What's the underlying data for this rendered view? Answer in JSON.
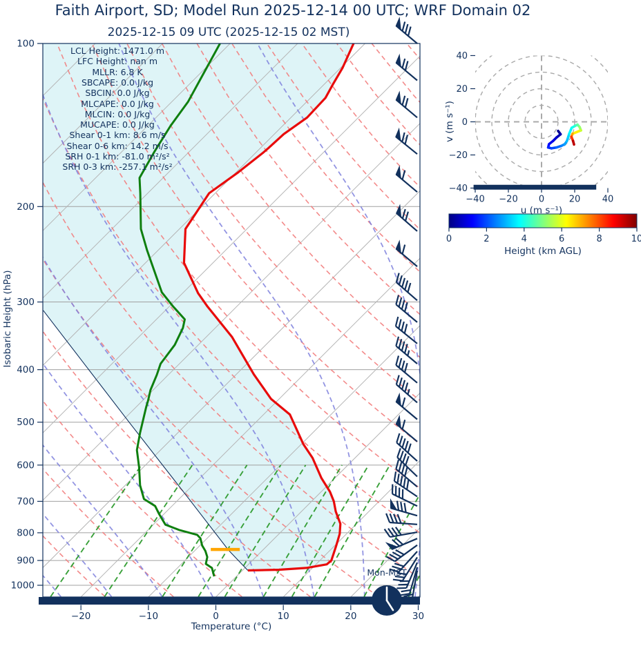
{
  "title": "Faith Airport, SD; Model Run 2025-12-14 00 UTC; WRF Domain 02",
  "subtitle": "2025-12-15 09 UTC  (2025-12-15 02 MST)",
  "colors": {
    "navy": "#12315d",
    "temperature": "#e80b0b",
    "dewpoint": "#0f7f0f",
    "parcel": "#12315d",
    "dry_adiabat": "#f27d7d",
    "moist_adiabat": "#7f81dd",
    "mixing_ratio": "#2e9b2e",
    "isotherm": "#b5b5b5",
    "gridline": "#a0a0a0",
    "cin_shade": "#def4f7",
    "lcl_marker": "#ffa500",
    "ring": "#a9a9a9"
  },
  "skewt": {
    "ylabel": "Isobaric Height (hPa)",
    "xlabel": "Temperature (°C)",
    "y_ticks": [
      100,
      200,
      300,
      400,
      500,
      600,
      700,
      800,
      900,
      1000
    ],
    "x_ticks": [
      -20,
      -10,
      0,
      10,
      20,
      30
    ],
    "x_tick_labels": [
      "−20",
      "−10",
      "0",
      "10",
      "20",
      "30"
    ],
    "surface_clock_label": "Mon-MST",
    "stats": [
      "LCL Height: 1471.0 m",
      "LFC Height: nan m",
      "MLLR: 6.8 K",
      "SBCAPE: 0.0 J/kg",
      "SBCIN: 0.0 J/kg",
      "MLCAPE: 0.0 J/kg",
      "MLCIN: 0.0 J/kg",
      "MUCAPE: 0.0 J/kg",
      "Shear 0-1 km: 8.6 m/s",
      "Shear 0-6 km: 14.2 m/s",
      "SRH 0-1 km: -81.0 m²/s²",
      "SRH 0-3 km: -257.1 m²/s²"
    ]
  },
  "hodograph": {
    "xlabel": "u (m s⁻¹)",
    "ylabel": "v (m s⁻¹)",
    "x_ticks": [
      -40,
      -20,
      0,
      20,
      40
    ],
    "x_tick_labels": [
      "−40",
      "−20",
      "0",
      "20",
      "40"
    ],
    "y_ticks": [
      40,
      20,
      0,
      -20,
      -40
    ],
    "y_tick_labels": [
      "40",
      "20",
      "0",
      "−20",
      "−40"
    ],
    "ring_radii_ms": [
      10,
      20,
      30,
      40,
      50
    ]
  },
  "colorbar": {
    "label": "Height (km AGL)",
    "ticks": [
      0,
      2,
      4,
      6,
      8,
      10
    ],
    "min": 0,
    "max": 10,
    "colormap": "jet"
  },
  "chart_data": {
    "type": "skewt-log-p sounding with hodograph",
    "pressure_range_hPa": [
      100,
      1050
    ],
    "temperature_axis_C": [
      -25,
      30
    ],
    "skew_deg": 45,
    "temperature_profile": {
      "pressure_hPa": [
        100,
        111,
        119,
        126,
        137,
        147,
        156,
        159,
        173,
        189,
        220,
        254,
        289,
        305,
        348,
        408,
        453,
        484,
        549,
        582,
        634,
        672,
        700,
        731,
        770,
        804,
        844,
        900,
        915,
        929,
        936,
        939
      ],
      "temperature_C": [
        -61.7,
        -59.7,
        -58.7,
        -57.8,
        -57.6,
        -58.6,
        -58.8,
        -58.9,
        -59.7,
        -60.9,
        -59.1,
        -54.3,
        -47.7,
        -44.5,
        -36.2,
        -27.4,
        -21.2,
        -16.1,
        -9.7,
        -6.3,
        -2.0,
        1.3,
        3.3,
        5.1,
        7.6,
        9.0,
        10.2,
        11.7,
        11.6,
        9.1,
        5.3,
        0.8
      ]
    },
    "dewpoint_profile": {
      "pressure_hPa": [
        100,
        115,
        128,
        142,
        158,
        177,
        189,
        220,
        241,
        288,
        305,
        323,
        335,
        360,
        390,
        409,
        436,
        456,
        469,
        523,
        563,
        606,
        654,
        693,
        714,
        739,
        773,
        791,
        807,
        819,
        844,
        864,
        887,
        913,
        929,
        963
      ],
      "temperature_C": [
        -81.5,
        -79.3,
        -77.6,
        -76.6,
        -75.2,
        -73.5,
        -71.1,
        -65.7,
        -61.6,
        -53.2,
        -49.6,
        -45.8,
        -44.8,
        -43.5,
        -42.8,
        -41.7,
        -40.4,
        -39.2,
        -38.5,
        -35.6,
        -33.5,
        -30.6,
        -27.8,
        -25.2,
        -22.5,
        -20.7,
        -18.2,
        -15.3,
        -12.0,
        -11.0,
        -9.7,
        -8.4,
        -7.2,
        -6.4,
        -4.9,
        -3.3
      ]
    },
    "parcel_profile": {
      "pressure_hPa": [
        939,
        861,
        700,
        500,
        311
      ],
      "temperature_C": [
        0.8,
        -5.1,
        -17.9,
        -38.8,
        -68.1
      ]
    },
    "lcl_marker": {
      "pressure_hPa": 859,
      "temp_from_C": -7.8,
      "temp_to_C": -3.5
    },
    "reference_lines": {
      "isotherms_C": {
        "start": -110,
        "end": 40,
        "step": 10
      },
      "dry_adiabats_C": {
        "start": -60,
        "end": 160,
        "step": 10
      },
      "moist_adiabats_start_C": [
        -53,
        -45.5,
        -38,
        -30.5,
        -23,
        -15.5,
        -8,
        -0.5,
        7,
        14.5,
        22,
        29.5,
        37
      ],
      "mixing_ratio_g_kg": [
        0.5,
        1,
        2,
        3,
        4,
        6,
        8,
        10,
        16,
        24
      ],
      "mixing_ratio_top_hPa": 600
    },
    "wind_barbs": [
      [
        100,
        140,
        1,
        3,
        0
      ],
      [
        117,
        140,
        1,
        2,
        0
      ],
      [
        137,
        140,
        1,
        2,
        0
      ],
      [
        160,
        141,
        1,
        2,
        0
      ],
      [
        188,
        140,
        1,
        1,
        0
      ],
      [
        222,
        139,
        1,
        2,
        0
      ],
      [
        258,
        140,
        1,
        1,
        0
      ],
      [
        298,
        139,
        0,
        5,
        0
      ],
      [
        327,
        140,
        0,
        4,
        0
      ],
      [
        358,
        141,
        0,
        4,
        0
      ],
      [
        390,
        140,
        0,
        4,
        1
      ],
      [
        423,
        140,
        0,
        4,
        0
      ],
      [
        460,
        139,
        0,
        4,
        1
      ],
      [
        494,
        140,
        1,
        1,
        0
      ],
      [
        543,
        140,
        1,
        1,
        0
      ],
      [
        590,
        138,
        0,
        5,
        0
      ],
      [
        630,
        136,
        0,
        4,
        0
      ],
      [
        658,
        140,
        0,
        4,
        0
      ],
      [
        686,
        146,
        0,
        5,
        0
      ],
      [
        714,
        154,
        0,
        4,
        0
      ],
      [
        744,
        164,
        1,
        3,
        0
      ],
      [
        772,
        176,
        0,
        4,
        0
      ],
      [
        798,
        190,
        0,
        4,
        0
      ],
      [
        820,
        203,
        1,
        2,
        0
      ],
      [
        843,
        216,
        0,
        4,
        0
      ],
      [
        866,
        228,
        0,
        3,
        0
      ],
      [
        888,
        238,
        0,
        3,
        0
      ],
      [
        908,
        247,
        0,
        3,
        0
      ],
      [
        926,
        254,
        0,
        2,
        0
      ],
      [
        940,
        260,
        0,
        2,
        0
      ]
    ],
    "hodograph_trace": {
      "u_ms": [
        10,
        11.5,
        9,
        7,
        4.5,
        4,
        6,
        9,
        12,
        14,
        15.3,
        16,
        16.7,
        18.2,
        20.3,
        21.7,
        23,
        23.8,
        22.4,
        18.7,
        18,
        19,
        19.6
      ],
      "v_ms": [
        -5.5,
        -7.5,
        -9.5,
        -11.5,
        -13.5,
        -15.5,
        -16,
        -15.5,
        -14.5,
        -13.5,
        -11.6,
        -9.5,
        -7.2,
        -3.6,
        -2.4,
        -1.7,
        -3.2,
        -5.2,
        -5.7,
        -7.2,
        -9,
        -11.5,
        -13.7
      ],
      "height_km": [
        0,
        0.3,
        0.6,
        0.9,
        1.2,
        1.5,
        1.8,
        2.1,
        2.4,
        2.7,
        3.0,
        3.2,
        3.5,
        3.8,
        4.1,
        4.5,
        5.0,
        5.5,
        6.0,
        6.8,
        7.6,
        8.8,
        10
      ]
    },
    "indices": {
      "LCL_height_m": 1471.0,
      "LFC_height_m": "nan",
      "MLLR_K": 6.8,
      "SBCAPE_J_kg": 0.0,
      "SBCIN_J_kg": 0.0,
      "MLCAPE_J_kg": 0.0,
      "MLCIN_J_kg": 0.0,
      "MUCAPE_J_kg": 0.0,
      "shear_0_1km_ms": 8.6,
      "shear_0_6km_ms": 14.2,
      "SRH_0_1km_m2s2": -81.0,
      "SRH_0_3km_m2s2": -257.1
    }
  }
}
